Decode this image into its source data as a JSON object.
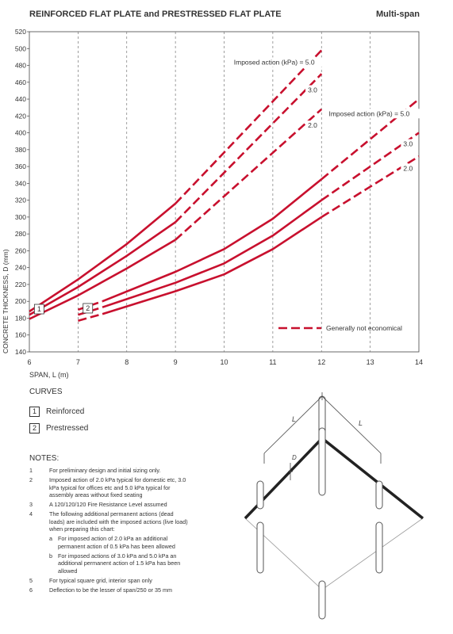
{
  "header": {
    "title": "REINFORCED FLAT PLATE and PRESTRESSED FLAT PLATE",
    "subtitle": "Multi-span"
  },
  "chart_data": {
    "type": "line",
    "xlabel": "SPAN, L (m)",
    "ylabel": "CONCRETE THICKNESS, D (mm)",
    "xlim": [
      6,
      14
    ],
    "ylim": [
      140,
      520
    ],
    "xticks": [
      "6",
      "7",
      "8",
      "9",
      "10",
      "11",
      "12",
      "13",
      "14"
    ],
    "yticks": [
      "140",
      "160",
      "180",
      "200",
      "220",
      "240",
      "260",
      "280",
      "300",
      "320",
      "340",
      "360",
      "380",
      "400",
      "420",
      "440",
      "460",
      "480",
      "500",
      "520"
    ],
    "grid": "vertical",
    "legend": {
      "label": "Generally not economical",
      "position": "bottom-right"
    },
    "series": [
      {
        "name": "Imposed action (kPa) = 5.0",
        "curve": "1",
        "solid": {
          "x": [
            6,
            7,
            8,
            9
          ],
          "y": [
            188,
            226,
            268,
            316
          ]
        },
        "dashed": {
          "x": [
            9,
            12
          ],
          "y": [
            316,
            498
          ]
        }
      },
      {
        "name": "3.0",
        "curve": "1",
        "solid": {
          "x": [
            6,
            7,
            8,
            9
          ],
          "y": [
            184,
            217,
            254,
            294
          ]
        },
        "dashed": {
          "x": [
            9,
            12
          ],
          "y": [
            294,
            470
          ]
        }
      },
      {
        "name": "2.0",
        "curve": "1",
        "solid": {
          "x": [
            6,
            7,
            8,
            9
          ],
          "y": [
            179,
            207,
            239,
            273
          ]
        },
        "dashed": {
          "x": [
            9,
            12
          ],
          "y": [
            273,
            428
          ]
        }
      },
      {
        "name": "Imposed action (kPa) = 5.0",
        "curve": "2",
        "dashed1": {
          "x": [
            7,
            7.5
          ],
          "y": [
            190,
            200
          ]
        },
        "solid": {
          "x": [
            7.5,
            9,
            10,
            11,
            12
          ],
          "y": [
            200,
            235,
            262,
            298,
            345
          ]
        },
        "dashed2": {
          "x": [
            12,
            14
          ],
          "y": [
            345,
            440
          ]
        }
      },
      {
        "name": "3.0",
        "curve": "2",
        "dashed1": {
          "x": [
            7,
            7.5
          ],
          "y": [
            184,
            193
          ]
        },
        "solid": {
          "x": [
            7.5,
            9,
            10,
            11,
            12
          ],
          "y": [
            193,
            222,
            245,
            278,
            320
          ]
        },
        "dashed2": {
          "x": [
            12,
            14
          ],
          "y": [
            320,
            400
          ]
        }
      },
      {
        "name": "2.0",
        "curve": "2",
        "dashed1": {
          "x": [
            7,
            7.5
          ],
          "y": [
            177,
            185
          ]
        },
        "solid": {
          "x": [
            7.5,
            9,
            10,
            11,
            12
          ],
          "y": [
            185,
            212,
            232,
            262,
            300
          ]
        },
        "dashed2": {
          "x": [
            12,
            14
          ],
          "y": [
            300,
            372
          ]
        }
      }
    ],
    "annotations": [
      {
        "text": "Imposed action (kPa) = 5.0",
        "x": 10.2,
        "y": 481
      },
      {
        "text": "3.0",
        "x": 11.72,
        "y": 448
      },
      {
        "text": "2.0",
        "x": 11.72,
        "y": 406
      },
      {
        "text": "Imposed action (kPa) = 5.0",
        "x": 12.15,
        "y": 420
      },
      {
        "text": "3.0",
        "x": 13.68,
        "y": 384
      },
      {
        "text": "2.0",
        "x": 13.68,
        "y": 355
      },
      {
        "text": "1",
        "x": 6.12,
        "y": 187
      },
      {
        "text": "2",
        "x": 7.12,
        "y": 188
      }
    ],
    "line_color": "#c8102e"
  },
  "curves": {
    "heading": "CURVES",
    "items": [
      {
        "key": "1",
        "label": "Reinforced"
      },
      {
        "key": "2",
        "label": "Prestressed"
      }
    ]
  },
  "notes": {
    "heading": "NOTES:",
    "items": [
      {
        "num": "1",
        "text": "For preliminary design and initial sizing only."
      },
      {
        "num": "2",
        "text": "Imposed action of 2.0 kPa typical for domestic etc, 3.0 kPa typical for offices etc and 5.0 kPa typical for assembly areas without fixed seating"
      },
      {
        "num": "3",
        "text": "A 120/120/120 Fire Resistance Level assumed"
      },
      {
        "num": "4",
        "text": "The following additional permanent actions (dead loads) are included with the imposed actions (live load) when preparing this chart:"
      },
      {
        "num": "a",
        "text": "For imposed action of 2.0 kPa an additional permanent action of 0.5 kPa has been allowed",
        "sub": true
      },
      {
        "num": "b",
        "text": "For imposed actions of 3.0 kPa and 5.0 kPa an additional permanent action of 1.5 kPa has been allowed",
        "sub": true
      },
      {
        "num": "5",
        "text": "For typical square grid, interior span only"
      },
      {
        "num": "6",
        "text": "Deflection to be the lesser of span/250 or 35 mm"
      }
    ]
  },
  "diagram": {
    "span_label": "L",
    "depth_label": "D"
  }
}
